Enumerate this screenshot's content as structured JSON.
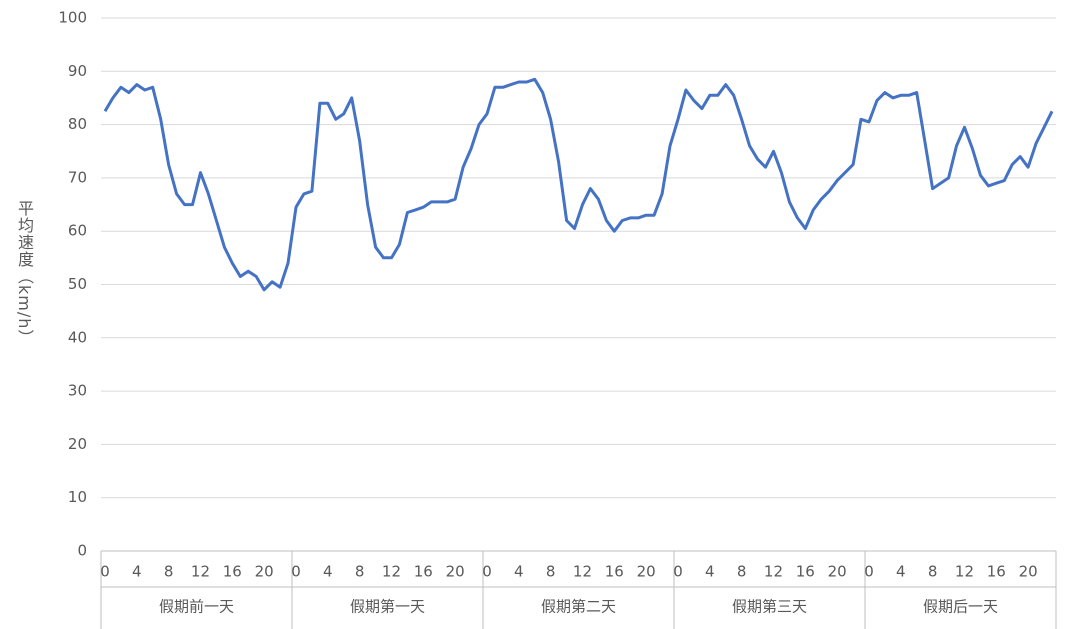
{
  "chart_data": {
    "type": "line",
    "y_label": "平均速度（km/h）",
    "categories": [
      "0",
      null,
      null,
      null,
      "4",
      null,
      null,
      null,
      "8",
      null,
      null,
      null,
      "12",
      null,
      null,
      null,
      "16",
      null,
      null,
      null,
      "20",
      null,
      null,
      null,
      "0",
      null,
      null,
      null,
      "4",
      null,
      null,
      null,
      "8",
      null,
      null,
      null,
      "12",
      null,
      null,
      null,
      "16",
      null,
      null,
      null,
      "20",
      null,
      null,
      null,
      "0",
      null,
      null,
      null,
      "4",
      null,
      null,
      null,
      "8",
      null,
      null,
      null,
      "12",
      null,
      null,
      null,
      "16",
      null,
      null,
      null,
      "20",
      null,
      null,
      null,
      "0",
      null,
      null,
      null,
      "4",
      null,
      null,
      null,
      "8",
      null,
      null,
      null,
      "12",
      null,
      null,
      null,
      "16",
      null,
      null,
      null,
      "20",
      null,
      null,
      null,
      "0",
      null,
      null,
      null,
      "4",
      null,
      null,
      null,
      "8",
      null,
      null,
      null,
      "12",
      null,
      null,
      null,
      "16",
      null,
      null,
      null,
      "20",
      null,
      null,
      null
    ],
    "groups": [
      "假期前一天",
      "假期第一天",
      "假期第二天",
      "假期第三天",
      "假期后一天"
    ],
    "values": [
      82.5,
      85,
      87,
      86,
      87.5,
      86.5,
      87,
      81,
      72.5,
      67,
      65,
      65,
      71,
      67,
      62,
      57,
      54,
      51.5,
      52.5,
      51.5,
      49,
      50.5,
      49.5,
      54,
      64.5,
      67,
      67.5,
      84,
      84,
      81,
      82,
      85,
      77,
      65,
      57,
      55,
      55,
      57.5,
      63.5,
      64,
      64.5,
      65.5,
      65.5,
      65.5,
      66,
      72,
      75.5,
      80,
      82,
      87,
      87,
      87.5,
      88,
      88,
      88.5,
      86,
      81,
      73,
      62,
      60.5,
      65,
      68,
      66,
      62,
      60,
      62,
      62.5,
      62.5,
      63,
      63,
      67,
      76,
      81,
      86.5,
      84.5,
      83,
      85.5,
      85.5,
      87.5,
      85.5,
      81,
      76,
      73.5,
      72,
      75,
      71,
      65.5,
      62.5,
      60.5,
      64,
      66,
      67.5,
      69.5,
      71,
      72.5,
      81,
      80.5,
      84.5,
      86,
      85,
      85.5,
      85.5,
      86,
      77,
      68,
      69,
      70,
      76,
      79.5,
      75.5,
      70.5,
      68.5,
      69,
      69.5,
      72.5,
      74,
      72,
      76.5,
      79.5,
      82.5
    ],
    "color": "#4472c4",
    "ylim": [
      0,
      100
    ],
    "yticks": [
      0,
      10,
      20,
      30,
      40,
      50,
      60,
      70,
      80,
      90,
      100
    ],
    "grid": true
  }
}
